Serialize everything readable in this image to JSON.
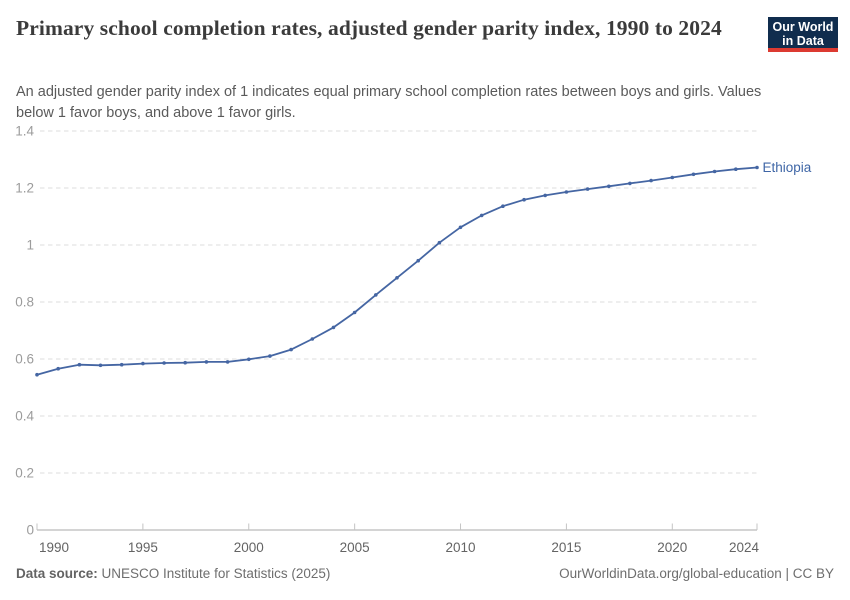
{
  "header": {
    "title": "Primary school completion rates, adjusted gender parity index, 1990 to 2024",
    "logo": {
      "line1": "Our World",
      "line2": "in Data"
    }
  },
  "subtitle": "An adjusted gender parity index of 1 indicates equal primary school completion rates between boys and girls. Values below 1 favor boys, and above 1 favor girls.",
  "footer": {
    "datasource_label": "Data source:",
    "datasource_value": " UNESCO Institute for Statistics (2025)",
    "link": "OurWorldinData.org/global-education | CC BY"
  },
  "colors": {
    "series": "#4566a3",
    "series_label": "#3f66a6",
    "gridline": "#dedede",
    "axis_line": "#a8a8a8",
    "axis_tick": "#c4c4c4",
    "y_tick_label": "#9c9c9c",
    "x_tick_label": "#646464",
    "logo_bg": "#102d4e",
    "logo_accent": "#dc3a31"
  },
  "chart_data": {
    "type": "line",
    "title": "Primary school completion rates, adjusted gender parity index, 1990 to 2024",
    "xlabel": "",
    "ylabel": "",
    "x": [
      1990,
      1991,
      1992,
      1993,
      1994,
      1995,
      1996,
      1997,
      1998,
      1999,
      2000,
      2001,
      2002,
      2003,
      2004,
      2005,
      2006,
      2007,
      2008,
      2009,
      2010,
      2011,
      2012,
      2013,
      2014,
      2015,
      2016,
      2017,
      2018,
      2019,
      2020,
      2021,
      2022,
      2023,
      2024
    ],
    "series": [
      {
        "name": "Ethiopia",
        "values": [
          0.545,
          0.566,
          0.58,
          0.578,
          0.58,
          0.584,
          0.586,
          0.587,
          0.59,
          0.59,
          0.599,
          0.61,
          0.633,
          0.67,
          0.711,
          0.763,
          0.825,
          0.885,
          0.945,
          1.008,
          1.062,
          1.104,
          1.136,
          1.159,
          1.174,
          1.186,
          1.196,
          1.206,
          1.216,
          1.226,
          1.237,
          1.248,
          1.258,
          1.266,
          1.272
        ]
      }
    ],
    "ylim": [
      0,
      1.4
    ],
    "yticks": [
      0,
      0.2,
      0.4,
      0.6,
      0.8,
      1,
      1.2,
      1.4
    ],
    "xticks": [
      1990,
      1995,
      2000,
      2005,
      2010,
      2015,
      2020,
      2024
    ],
    "grid": "horizontal-dashed",
    "legend": "end-of-line-label"
  }
}
